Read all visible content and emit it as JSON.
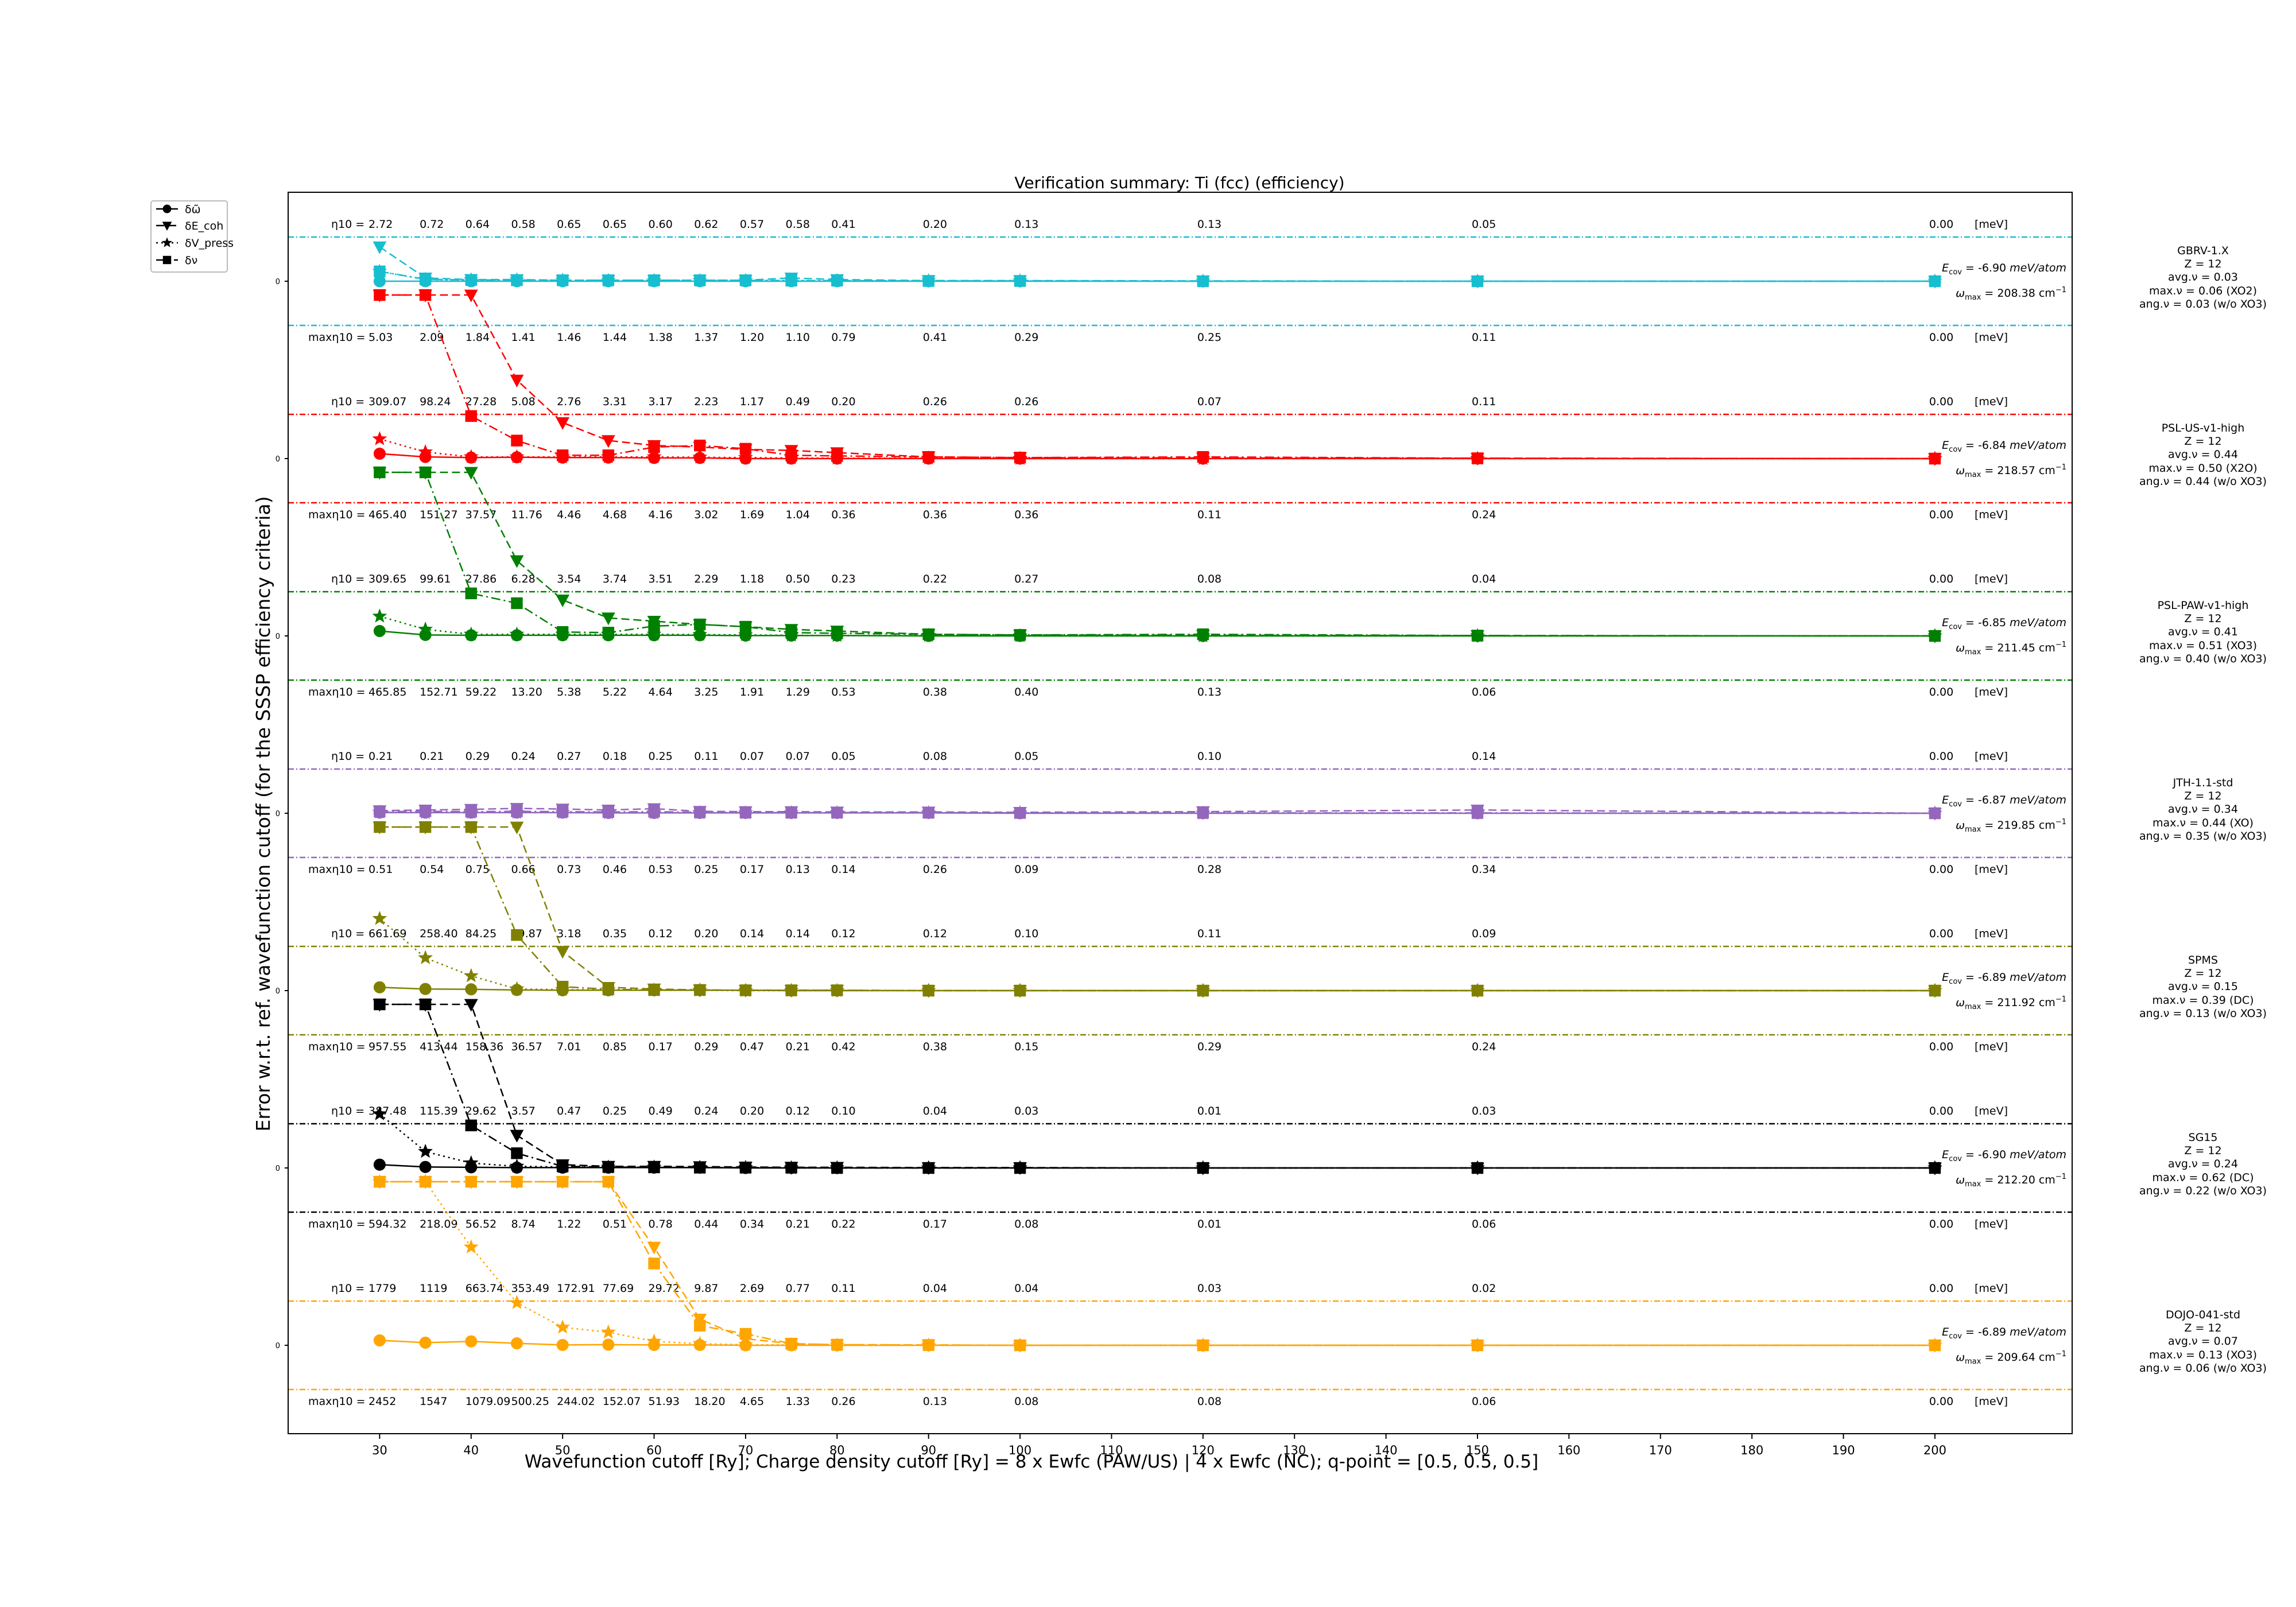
{
  "chart_data": {
    "type": "line",
    "title": "Verification summary: Ti (fcc) (efficiency)",
    "xlabel": "Wavefunction cutoff [Ry]; Charge density cutoff [Ry] = 8 x Ewfc (PAW/US) | 4 x Ewfc (NC); q-point = [0.5, 0.5, 0.5]",
    "ylabel": "Error w.r.t. ref. wavefunction cutoff (for the SSSP efficiency criteria)",
    "x_ticks": [
      30,
      40,
      50,
      60,
      70,
      80,
      90,
      100,
      110,
      120,
      130,
      140,
      150,
      160,
      170,
      180,
      190,
      200
    ],
    "xlim": [
      20,
      215
    ],
    "legend": {
      "position": "top-left outside",
      "entries": [
        {
          "label": "δω̃",
          "marker": "circle",
          "dash": "solid"
        },
        {
          "label": "δE_coh",
          "marker": "triangle-down",
          "dash": "dashed"
        },
        {
          "label": "δV_press",
          "marker": "star",
          "dash": "dotted"
        },
        {
          "label": "δν",
          "marker": "square",
          "dash": "dashdot"
        }
      ]
    },
    "grid": false,
    "band_zero_label": "0",
    "eta_prefix": "η10 =",
    "max_eta_prefix": "maxη10 =",
    "unit_label": "[meV]",
    "x": [
      30,
      35,
      40,
      45,
      50,
      55,
      60,
      65,
      70,
      75,
      80,
      90,
      100,
      120,
      150,
      200
    ],
    "pseudopotentials": [
      {
        "name": "GBRV-1.X",
        "color": "#17becf",
        "z": "Z = 12",
        "avg_nu": "avg.ν = 0.03",
        "max_nu": "max.ν = 0.06 (XO2)",
        "ang_nu": "ang.ν = 0.03 (w/o XO3)",
        "e_coh": "-6.90",
        "omega_max": "208.38",
        "eta10": [
          "2.72",
          "0.72",
          "0.64",
          "0.58",
          "0.65",
          "0.65",
          "0.60",
          "0.62",
          "0.57",
          "0.58",
          "0.41",
          "0.20",
          "0.13",
          "0.13",
          "0.05",
          "0.00"
        ],
        "max_eta10": [
          "5.03",
          "2.09",
          "1.84",
          "1.41",
          "1.46",
          "1.44",
          "1.38",
          "1.37",
          "1.20",
          "1.10",
          "0.79",
          "0.41",
          "0.29",
          "0.25",
          "0.11",
          "0.00"
        ],
        "series": {
          "phonon": [
            0.0,
            0.0,
            0.0,
            0.0,
            0.0,
            0.0,
            0.0,
            0.0,
            0.0,
            0.0,
            0.0,
            0.0,
            0.0,
            0.0,
            0.0,
            0.0
          ],
          "cohesive": [
            1.05,
            0.1,
            0.05,
            0.05,
            0.03,
            0.03,
            0.03,
            0.03,
            0.03,
            0.1,
            0.05,
            0.02,
            0.02,
            0.01,
            0.0,
            0.0
          ],
          "pressure": [
            0.3,
            0.05,
            0.04,
            0.04,
            0.03,
            0.02,
            0.02,
            0.02,
            0.02,
            0.02,
            0.02,
            0.01,
            0.01,
            0.0,
            0.0,
            0.0
          ],
          "nu": [
            0.3,
            0.06,
            0.04,
            0.03,
            0.03,
            0.03,
            0.03,
            0.03,
            0.03,
            0.02,
            0.02,
            0.01,
            0.01,
            0.0,
            0.0,
            0.0
          ]
        }
      },
      {
        "name": "PSL-US-v1-high",
        "color": "#ff0000",
        "z": "Z = 12",
        "avg_nu": "avg.ν = 0.44",
        "max_nu": "max.ν = 0.50 (X2O)",
        "ang_nu": "ang.ν = 0.44 (w/o XO3)",
        "e_coh": "-6.84",
        "omega_max": "218.57",
        "eta10": [
          "309.07",
          "98.24",
          "27.28",
          "5.08",
          "2.76",
          "3.31",
          "3.17",
          "2.23",
          "1.17",
          "0.49",
          "0.20",
          "0.26",
          "0.26",
          "0.07",
          "0.11",
          "0.00"
        ],
        "max_eta10": [
          "465.40",
          "151.27",
          "37.57",
          "11.76",
          "4.46",
          "4.68",
          "4.16",
          "3.02",
          "1.69",
          "1.04",
          "0.36",
          "0.36",
          "0.36",
          "0.11",
          "0.24",
          "0.00"
        ],
        "series": {
          "phonon": [
            0.15,
            0.05,
            0.03,
            0.04,
            0.03,
            0.03,
            0.02,
            0.02,
            0.0,
            0.0,
            0.0,
            0.0,
            0.0,
            0.0,
            0.0,
            0.0
          ],
          "cohesive": [
            5.0,
            5.0,
            5.0,
            2.4,
            1.1,
            0.55,
            0.4,
            0.35,
            0.28,
            0.25,
            0.18,
            0.05,
            0.03,
            0.02,
            0.01,
            0.0
          ],
          "pressure": [
            0.6,
            0.2,
            0.05,
            0.05,
            0.05,
            0.05,
            0.05,
            0.04,
            0.03,
            0.02,
            0.01,
            0.01,
            0.0,
            0.0,
            0.0,
            0.0
          ],
          "nu": [
            5.0,
            5.0,
            1.3,
            0.55,
            0.1,
            0.1,
            0.35,
            0.4,
            0.3,
            0.1,
            0.08,
            0.05,
            0.03,
            0.05,
            0.01,
            0.0
          ]
        }
      },
      {
        "name": "PSL-PAW-v1-high",
        "color": "#008000",
        "z": "Z = 12",
        "avg_nu": "avg.ν = 0.41",
        "max_nu": "max.ν = 0.51 (XO3)",
        "ang_nu": "ang.ν = 0.40 (w/o XO3)",
        "e_coh": "-6.85",
        "omega_max": "211.45",
        "eta10": [
          "309.65",
          "99.61",
          "27.86",
          "6.28",
          "3.54",
          "3.74",
          "3.51",
          "2.29",
          "1.18",
          "0.50",
          "0.23",
          "0.22",
          "0.27",
          "0.08",
          "0.04",
          "0.00"
        ],
        "max_eta10": [
          "465.85",
          "152.71",
          "59.22",
          "13.20",
          "5.38",
          "5.22",
          "4.64",
          "3.25",
          "1.91",
          "1.29",
          "0.53",
          "0.38",
          "0.40",
          "0.13",
          "0.06",
          "0.00"
        ],
        "series": {
          "phonon": [
            0.15,
            0.03,
            0.02,
            0.02,
            0.02,
            0.02,
            0.02,
            0.02,
            0.01,
            0.01,
            0.01,
            0.0,
            0.0,
            0.0,
            0.0,
            0.0
          ],
          "cohesive": [
            5.0,
            5.0,
            5.0,
            2.3,
            1.1,
            0.55,
            0.45,
            0.35,
            0.28,
            0.2,
            0.15,
            0.05,
            0.03,
            0.02,
            0.01,
            0.0
          ],
          "pressure": [
            0.6,
            0.2,
            0.05,
            0.05,
            0.05,
            0.05,
            0.05,
            0.04,
            0.03,
            0.02,
            0.01,
            0.01,
            0.0,
            0.0,
            0.0,
            0.0
          ],
          "nu": [
            5.0,
            5.0,
            1.3,
            1.0,
            0.12,
            0.1,
            0.3,
            0.35,
            0.28,
            0.1,
            0.08,
            0.05,
            0.03,
            0.05,
            0.01,
            0.0
          ]
        }
      },
      {
        "name": "JTH-1.1-std",
        "color": "#9467bd",
        "z": "Z = 12",
        "avg_nu": "avg.ν = 0.34",
        "max_nu": "max.ν = 0.44 (XO)",
        "ang_nu": "ang.ν = 0.35 (w/o XO3)",
        "e_coh": "-6.87",
        "omega_max": "219.85",
        "eta10": [
          "0.21",
          "0.21",
          "0.29",
          "0.24",
          "0.27",
          "0.18",
          "0.25",
          "0.11",
          "0.07",
          "0.07",
          "0.05",
          "0.08",
          "0.05",
          "0.10",
          "0.14",
          "0.00"
        ],
        "max_eta10": [
          "0.51",
          "0.54",
          "0.75",
          "0.66",
          "0.73",
          "0.46",
          "0.53",
          "0.25",
          "0.17",
          "0.13",
          "0.14",
          "0.26",
          "0.09",
          "0.28",
          "0.34",
          "0.00"
        ],
        "series": {
          "phonon": [
            0.02,
            0.02,
            0.02,
            0.02,
            0.02,
            0.01,
            0.01,
            0.01,
            0.01,
            0.01,
            0.01,
            0.01,
            0.0,
            0.0,
            0.0,
            0.0
          ],
          "cohesive": [
            0.08,
            0.1,
            0.12,
            0.15,
            0.13,
            0.1,
            0.14,
            0.06,
            0.05,
            0.05,
            0.04,
            0.04,
            0.03,
            0.05,
            0.1,
            0.0
          ],
          "pressure": [
            0.03,
            0.02,
            0.02,
            0.02,
            0.02,
            0.01,
            0.01,
            0.01,
            0.01,
            0.01,
            0.01,
            0.01,
            0.01,
            0.0,
            0.0,
            0.0
          ],
          "nu": [
            0.05,
            0.06,
            0.05,
            0.06,
            0.05,
            0.04,
            0.05,
            0.03,
            0.02,
            0.02,
            0.02,
            0.02,
            0.01,
            0.01,
            0.01,
            0.0
          ]
        }
      },
      {
        "name": "SPMS",
        "color": "#808000",
        "z": "Z = 12",
        "avg_nu": "avg.ν = 0.15",
        "max_nu": "max.ν = 0.39 (DC)",
        "ang_nu": "ang.ν = 0.13 (w/o XO3)",
        "e_coh": "-6.89",
        "omega_max": "211.92",
        "eta10": [
          "661.69",
          "258.40",
          "84.25",
          "19.87",
          "3.18",
          "0.35",
          "0.12",
          "0.20",
          "0.14",
          "0.14",
          "0.12",
          "0.12",
          "0.10",
          "0.11",
          "0.09",
          "0.00"
        ],
        "max_eta10": [
          "957.55",
          "413.44",
          "158.36",
          "36.57",
          "7.01",
          "0.85",
          "0.17",
          "0.29",
          "0.47",
          "0.21",
          "0.42",
          "0.38",
          "0.15",
          "0.29",
          "0.24",
          "0.00"
        ],
        "series": {
          "phonon": [
            0.1,
            0.05,
            0.04,
            0.02,
            0.01,
            0.01,
            0.01,
            0.01,
            0.01,
            0.0,
            0.0,
            0.0,
            0.0,
            0.0,
            0.0,
            0.0
          ],
          "cohesive": [
            5.0,
            5.0,
            5.0,
            5.0,
            1.2,
            0.1,
            0.05,
            0.02,
            0.01,
            0.01,
            0.01,
            0.0,
            0.0,
            0.0,
            0.0,
            0.0
          ],
          "pressure": [
            2.2,
            1.0,
            0.45,
            0.05,
            0.03,
            0.02,
            0.01,
            0.01,
            0.0,
            0.0,
            0.0,
            0.0,
            0.0,
            0.0,
            0.0,
            0.0
          ],
          "nu": [
            5.0,
            5.0,
            5.0,
            1.7,
            0.12,
            0.04,
            0.02,
            0.02,
            0.01,
            0.01,
            0.01,
            0.0,
            0.0,
            0.0,
            0.0,
            0.0
          ]
        }
      },
      {
        "name": "SG15",
        "color": "#000000",
        "z": "Z = 12",
        "avg_nu": "avg.ν = 0.24",
        "max_nu": "max.ν = 0.62 (DC)",
        "ang_nu": "ang.ν = 0.22 (w/o XO3)",
        "e_coh": "-6.90",
        "omega_max": "212.20",
        "eta10": [
          "387.48",
          "115.39",
          "29.62",
          "3.57",
          "0.47",
          "0.25",
          "0.49",
          "0.24",
          "0.20",
          "0.12",
          "0.10",
          "0.04",
          "0.03",
          "0.01",
          "0.03",
          "0.00"
        ],
        "max_eta10": [
          "594.32",
          "218.09",
          "56.52",
          "8.74",
          "1.22",
          "0.51",
          "0.78",
          "0.44",
          "0.34",
          "0.21",
          "0.22",
          "0.17",
          "0.08",
          "0.01",
          "0.06",
          "0.00"
        ],
        "series": {
          "phonon": [
            0.1,
            0.03,
            0.02,
            0.01,
            0.01,
            0.01,
            0.01,
            0.01,
            0.0,
            0.0,
            0.0,
            0.0,
            0.0,
            0.0,
            0.0,
            0.0
          ],
          "cohesive": [
            5.0,
            5.0,
            5.0,
            1.0,
            0.1,
            0.05,
            0.05,
            0.04,
            0.03,
            0.02,
            0.02,
            0.01,
            0.01,
            0.0,
            0.0,
            0.0
          ],
          "pressure": [
            1.65,
            0.5,
            0.15,
            0.05,
            0.03,
            0.02,
            0.02,
            0.01,
            0.01,
            0.0,
            0.0,
            0.0,
            0.0,
            0.0,
            0.0,
            0.0
          ],
          "nu": [
            5.0,
            5.0,
            1.3,
            0.45,
            0.05,
            0.03,
            0.02,
            0.01,
            0.01,
            0.01,
            0.0,
            0.0,
            0.0,
            0.0,
            0.0,
            0.0
          ]
        }
      },
      {
        "name": "DOJO-041-std",
        "color": "#ffa500",
        "z": "Z = 12",
        "avg_nu": "avg.ν = 0.07",
        "max_nu": "max.ν = 0.13 (XO3)",
        "ang_nu": "ang.ν = 0.06 (w/o XO3)",
        "e_coh": "-6.89",
        "omega_max": "209.64",
        "eta10": [
          "1779",
          "1119",
          "663.74",
          "353.49",
          "172.91",
          "77.69",
          "29.72",
          "9.87",
          "2.69",
          "0.77",
          "0.11",
          "0.04",
          "0.04",
          "0.03",
          "0.02",
          "0.00"
        ],
        "max_eta10": [
          "2452",
          "1547",
          "1079.09",
          "500.25",
          "244.02",
          "152.07",
          "51.93",
          "18.20",
          "4.65",
          "1.33",
          "0.26",
          "0.13",
          "0.08",
          "0.08",
          "0.06",
          "0.00"
        ],
        "series": {
          "phonon": [
            0.15,
            0.08,
            0.12,
            0.06,
            0.01,
            0.02,
            0.01,
            0.01,
            0.0,
            0.0,
            0.0,
            0.0,
            0.0,
            0.0,
            0.0,
            0.0
          ],
          "cohesive": [
            5.0,
            5.0,
            5.0,
            5.0,
            5.0,
            5.0,
            3.0,
            0.8,
            0.2,
            0.05,
            0.02,
            0.01,
            0.0,
            0.0,
            0.0,
            0.0
          ],
          "pressure": [
            5.0,
            5.0,
            3.0,
            1.3,
            0.55,
            0.4,
            0.12,
            0.05,
            0.02,
            0.01,
            0.0,
            0.0,
            0.0,
            0.0,
            0.0,
            0.0
          ],
          "nu": [
            5.0,
            5.0,
            5.0,
            5.0,
            5.0,
            5.0,
            2.5,
            0.6,
            0.35,
            0.05,
            0.02,
            0.01,
            0.0,
            0.0,
            0.0,
            0.0
          ]
        }
      }
    ]
  }
}
